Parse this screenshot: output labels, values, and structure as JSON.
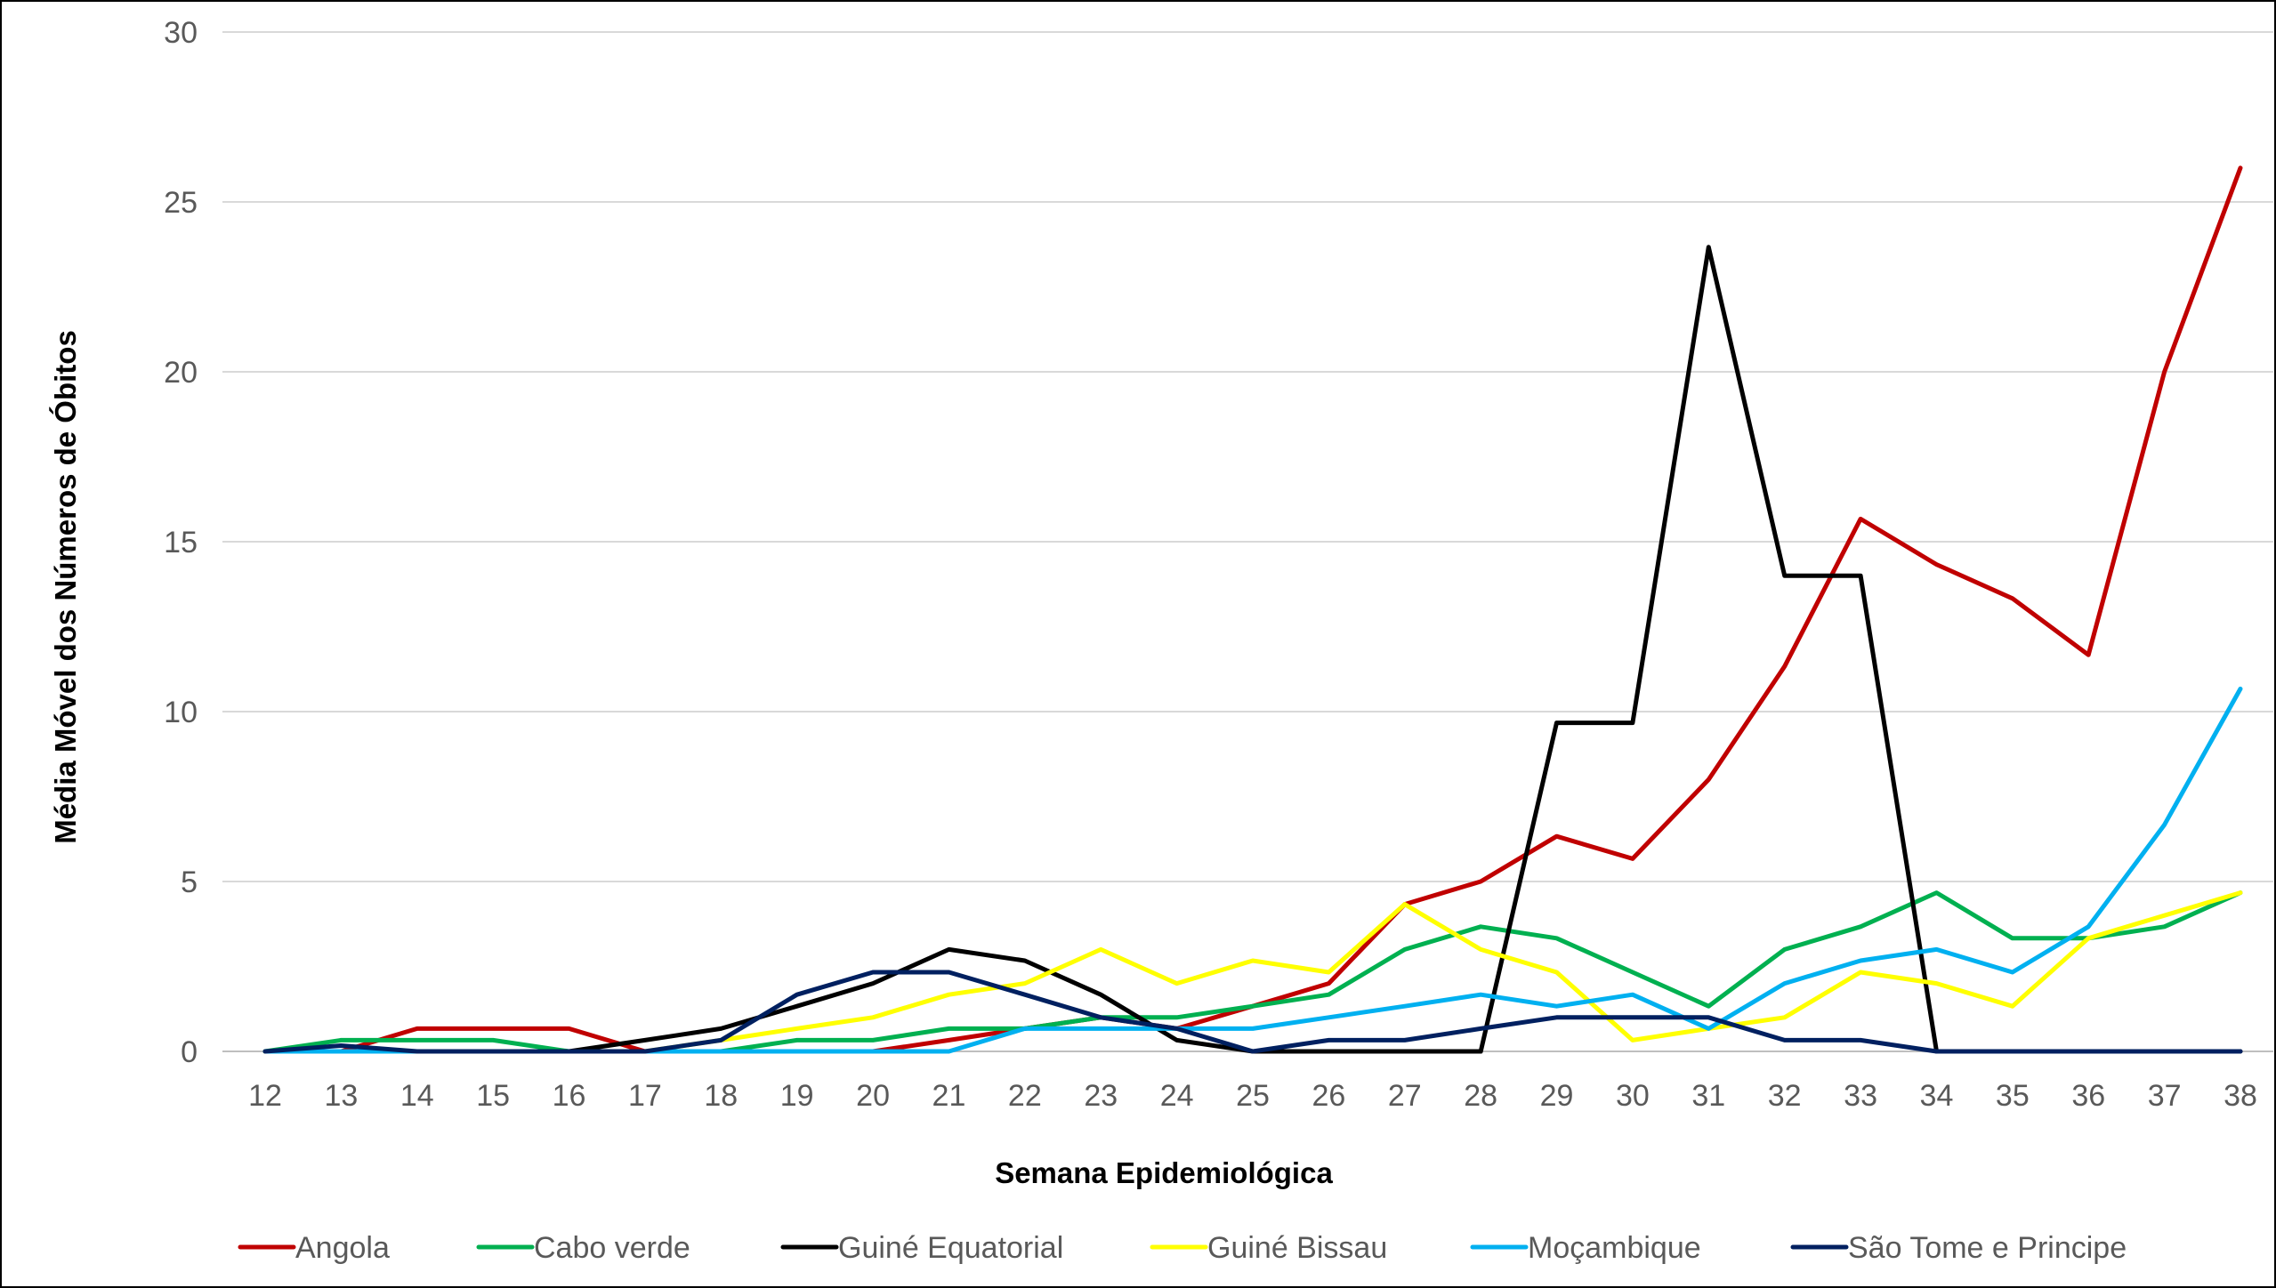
{
  "chart_data": {
    "type": "line",
    "xlabel": "Semana Epidemiológica",
    "ylabel": "Média Móvel dos Números de Óbitos",
    "categories": [
      "12",
      "13",
      "14",
      "15",
      "16",
      "17",
      "18",
      "19",
      "20",
      "21",
      "22",
      "23",
      "24",
      "25",
      "26",
      "27",
      "28",
      "29",
      "30",
      "31",
      "32",
      "33",
      "34",
      "35",
      "36",
      "37",
      "38"
    ],
    "ylim": [
      0,
      30
    ],
    "yticks": [
      "0",
      "5",
      "10",
      "15",
      "20",
      "25",
      "30"
    ],
    "grid": true,
    "legend_position": "bottom",
    "series": [
      {
        "name": "Angola",
        "color": "#C00000",
        "values": [
          0,
          0,
          0.67,
          0.67,
          0.67,
          0,
          0,
          0,
          0,
          0.33,
          0.67,
          1,
          0.67,
          1.33,
          2,
          4.33,
          5,
          6.33,
          5.67,
          8,
          11.33,
          15.67,
          14.33,
          13.33,
          11.67,
          20,
          26
        ]
      },
      {
        "name": "Cabo verde",
        "color": "#00B050",
        "values": [
          0,
          0.33,
          0.33,
          0.33,
          0,
          0,
          0,
          0.33,
          0.33,
          0.67,
          0.67,
          1,
          1,
          1.33,
          1.67,
          3,
          3.67,
          3.33,
          2.33,
          1.33,
          3,
          3.67,
          4.67,
          3.33,
          3.33,
          3.67,
          4.67
        ]
      },
      {
        "name": "Guiné Equatorial",
        "color": "#000000",
        "values": [
          0,
          0,
          0,
          0,
          0,
          0.33,
          0.67,
          1.33,
          2,
          3,
          2.67,
          1.67,
          0.33,
          0,
          0,
          0,
          0,
          9.67,
          9.67,
          23.67,
          14,
          14,
          0,
          0,
          0,
          0,
          0
        ]
      },
      {
        "name": "Guiné Bissau",
        "color": "#FFFF00",
        "values": [
          0,
          0,
          0,
          0,
          0,
          0,
          0.33,
          0.67,
          1,
          1.67,
          2,
          3,
          2,
          2.67,
          2.33,
          4.33,
          3,
          2.33,
          0.33,
          0.67,
          1,
          2.33,
          2,
          1.33,
          3.33,
          4,
          4.67
        ]
      },
      {
        "name": "Moçambique",
        "color": "#00B0F0",
        "values": [
          0,
          0,
          0,
          0,
          0,
          0,
          0,
          0,
          0,
          0,
          0.67,
          0.67,
          0.67,
          0.67,
          1,
          1.33,
          1.67,
          1.33,
          1.67,
          0.67,
          2,
          2.67,
          3,
          2.33,
          3.67,
          6.67,
          10.67
        ]
      },
      {
        "name": "São Tome e Principe",
        "color": "#002060",
        "values": [
          0,
          0.17,
          0,
          0,
          0,
          0,
          0.33,
          1.67,
          2.33,
          2.33,
          1.67,
          1,
          0.67,
          0,
          0.33,
          0.33,
          0.67,
          1,
          1,
          1,
          0.33,
          0.33,
          0,
          0,
          0,
          0,
          0
        ]
      }
    ]
  }
}
